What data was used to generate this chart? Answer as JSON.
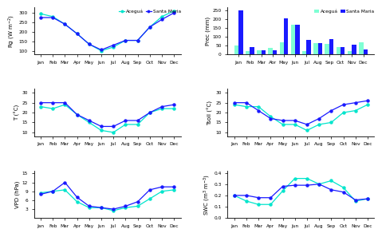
{
  "months": [
    "Jan",
    "Feb",
    "Mar",
    "Apr",
    "May",
    "Jun",
    "Jul",
    "Aug",
    "Sep",
    "Oct",
    "Nov",
    "Dec"
  ],
  "months_prec": [
    "Jan",
    "Feb",
    "Mar",
    "Abr",
    "May",
    "Jun",
    "Jul",
    "Aug",
    "Sep",
    "Oct",
    "Nov",
    "Dec"
  ],
  "Rg_acegua": [
    295,
    280,
    240,
    190,
    135,
    100,
    120,
    155,
    155,
    225,
    280,
    310
  ],
  "Rg_santamaria": [
    275,
    275,
    240,
    190,
    135,
    105,
    130,
    155,
    155,
    225,
    265,
    300
  ],
  "Prec_acegua": [
    50,
    20,
    25,
    40,
    70,
    170,
    20,
    65,
    60,
    45,
    20,
    70
  ],
  "Prec_santa": [
    250,
    45,
    25,
    25,
    205,
    170,
    85,
    65,
    90,
    45,
    55,
    30
  ],
  "T_acegua": [
    23,
    22,
    24,
    19,
    15,
    11,
    10,
    14,
    14,
    20,
    22,
    22
  ],
  "T_santamaria": [
    25,
    25,
    25,
    19,
    16,
    13,
    13,
    16,
    16,
    20,
    23,
    24
  ],
  "Tsoil_acegua": [
    24,
    23,
    23,
    18,
    14,
    14,
    11,
    14,
    15,
    20,
    21,
    24
  ],
  "Tsoil_santa": [
    25,
    25,
    21,
    17,
    16,
    16,
    14,
    17,
    21,
    24,
    25,
    26
  ],
  "VPD_acegua": [
    8.5,
    9.0,
    9.5,
    5.5,
    3.5,
    3.5,
    2.5,
    3.5,
    4.0,
    6.5,
    9.0,
    9.5
  ],
  "VPD_santa": [
    8.0,
    9.0,
    12.0,
    7.0,
    4.0,
    3.5,
    3.0,
    4.0,
    5.5,
    9.5,
    10.5,
    10.5
  ],
  "SWC_acegua": [
    0.2,
    0.15,
    0.12,
    0.12,
    0.24,
    0.35,
    0.35,
    0.3,
    0.33,
    0.27,
    0.15,
    0.17
  ],
  "SWC_santa": [
    0.2,
    0.2,
    0.18,
    0.18,
    0.28,
    0.29,
    0.29,
    0.3,
    0.25,
    0.23,
    0.16,
    0.17
  ],
  "color_acegua": "#00e5cc",
  "color_santa": "#1a1aff",
  "color_bar_acegua": "#7fffd4",
  "color_bar_santa": "#1a1aff",
  "label_acegua": "Aceguá",
  "label_santa": "Santa Maria",
  "ylabel_Rg": "Rg (W m$^{-2}$)",
  "ylabel_Prec": "Prec (mm)",
  "ylabel_T": "T (°C)",
  "ylabel_Tsoil": "Tsoil (°C)",
  "ylabel_VPD": "VPD (hPa)",
  "ylabel_SWC": "SWC (m$^3$ m$^{-3}$)"
}
